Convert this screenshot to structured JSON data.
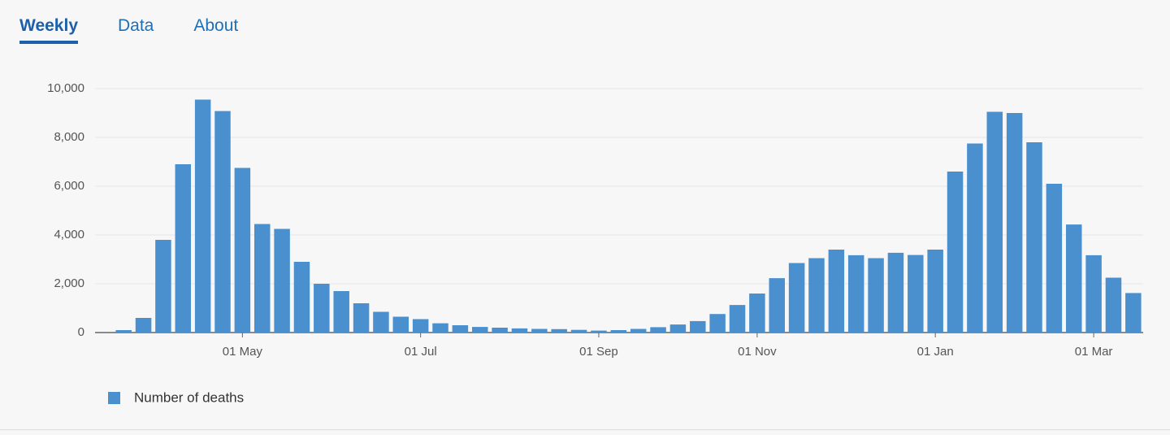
{
  "tabs": [
    {
      "label": "Weekly"
    },
    {
      "label": "Data"
    },
    {
      "label": "About"
    }
  ],
  "chart_data": {
    "type": "bar",
    "categories": [
      null,
      null,
      null,
      null,
      null,
      null,
      "01 May",
      null,
      null,
      null,
      null,
      null,
      null,
      null,
      null,
      "01 Jul",
      null,
      null,
      null,
      null,
      null,
      null,
      null,
      null,
      "01 Sep",
      null,
      null,
      null,
      null,
      null,
      null,
      null,
      "01 Nov",
      null,
      null,
      null,
      null,
      null,
      null,
      null,
      null,
      "01 Jan",
      null,
      null,
      null,
      null,
      null,
      null,
      null,
      "01 Mar",
      null,
      null
    ],
    "series": [
      {
        "name": "Number of deaths",
        "color": "#4a90cf",
        "values": [
          100,
          600,
          3800,
          6900,
          9550,
          9080,
          6750,
          4450,
          4250,
          2900,
          2000,
          1700,
          1200,
          850,
          650,
          550,
          380,
          300,
          230,
          200,
          170,
          150,
          140,
          110,
          80,
          100,
          150,
          220,
          330,
          470,
          760,
          1130,
          1600,
          2230,
          2850,
          3050,
          3400,
          3170,
          3050,
          3270,
          3180,
          3400,
          6600,
          7750,
          9050,
          9000,
          7800,
          6100,
          4430,
          3170,
          2250,
          1620
        ]
      }
    ],
    "ylim": [
      0,
      10000
    ],
    "yticks": [
      0,
      {
        "value": 2000,
        "label": "2,000"
      },
      {
        "value": 4000,
        "label": "4,000"
      },
      {
        "value": 6000,
        "label": "6,000"
      },
      {
        "value": 8000,
        "label": "8,000"
      },
      {
        "value": 10000,
        "label": "10,000"
      }
    ],
    "grid": true
  }
}
